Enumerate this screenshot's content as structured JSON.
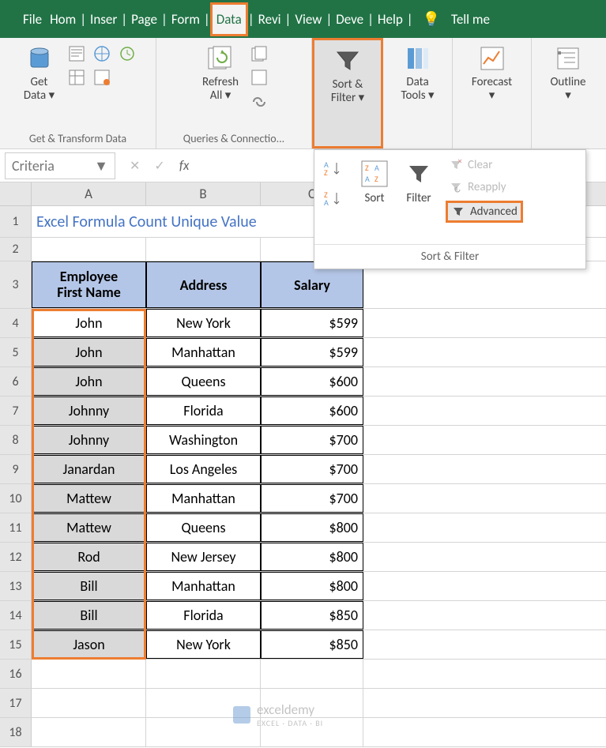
{
  "tabs": {
    "file": "File",
    "home": "Hom",
    "insert": "Inser",
    "page": "Page",
    "formulas": "Form",
    "data": "Data",
    "review": "Revi",
    "view": "View",
    "developer": "Deve",
    "help": "Help",
    "tellme": "Tell me"
  },
  "ribbon": {
    "get_data": "Get\nData ▾",
    "group_transform": "Get & Transform Data",
    "refresh_all": "Refresh\nAll ▾",
    "group_queries": "Queries & Connectio...",
    "sort_filter": "Sort &\nFilter ▾",
    "data_tools": "Data\nTools ▾",
    "forecast": "Forecast\n▾",
    "outline": "Outline\n▾"
  },
  "dropdown": {
    "sort": "Sort",
    "filter": "Filter",
    "clear": "Clear",
    "reapply": "Reapply",
    "advanced": "Advanced",
    "footer": "Sort & Filter"
  },
  "formula_bar": {
    "name_box": "Criteria",
    "fx": "fx"
  },
  "columns": [
    "A",
    "B",
    "C"
  ],
  "sheet": {
    "title": "Excel Formula Count Unique Value",
    "headers": {
      "a": "Employee\nFirst Name",
      "b": "Address",
      "c": "Salary"
    },
    "rows": [
      {
        "n": "4",
        "a": "John",
        "b": "New York",
        "c": "$599"
      },
      {
        "n": "5",
        "a": "John",
        "b": "Manhattan",
        "c": "$599"
      },
      {
        "n": "6",
        "a": "John",
        "b": "Queens",
        "c": "$600"
      },
      {
        "n": "7",
        "a": "Johnny",
        "b": "Florida",
        "c": "$600"
      },
      {
        "n": "8",
        "a": "Johnny",
        "b": "Washington",
        "c": "$700"
      },
      {
        "n": "9",
        "a": "Janardan",
        "b": "Los Angeles",
        "c": "$700"
      },
      {
        "n": "10",
        "a": "Mattew",
        "b": "Manhattan",
        "c": "$700"
      },
      {
        "n": "11",
        "a": "Mattew",
        "b": "Queens",
        "c": "$800"
      },
      {
        "n": "12",
        "a": "Rod",
        "b": "New Jersey",
        "c": "$800"
      },
      {
        "n": "13",
        "a": "Bill",
        "b": "Manhattan",
        "c": "$800"
      },
      {
        "n": "14",
        "a": "Bill",
        "b": "Florida",
        "c": "$850"
      },
      {
        "n": "15",
        "a": "Jason",
        "b": "New York",
        "c": "$850"
      }
    ],
    "empty_rows": [
      "16",
      "17",
      "18"
    ]
  },
  "watermark": {
    "name": "exceldemy",
    "sub": "EXCEL · DATA · BI"
  },
  "colors": {
    "excel_green": "#217346",
    "highlight_orange": "#ed7d31",
    "header_fill": "#b4c6e7",
    "selection_gray": "#d9d9d9",
    "title_blue": "#4574c4"
  }
}
